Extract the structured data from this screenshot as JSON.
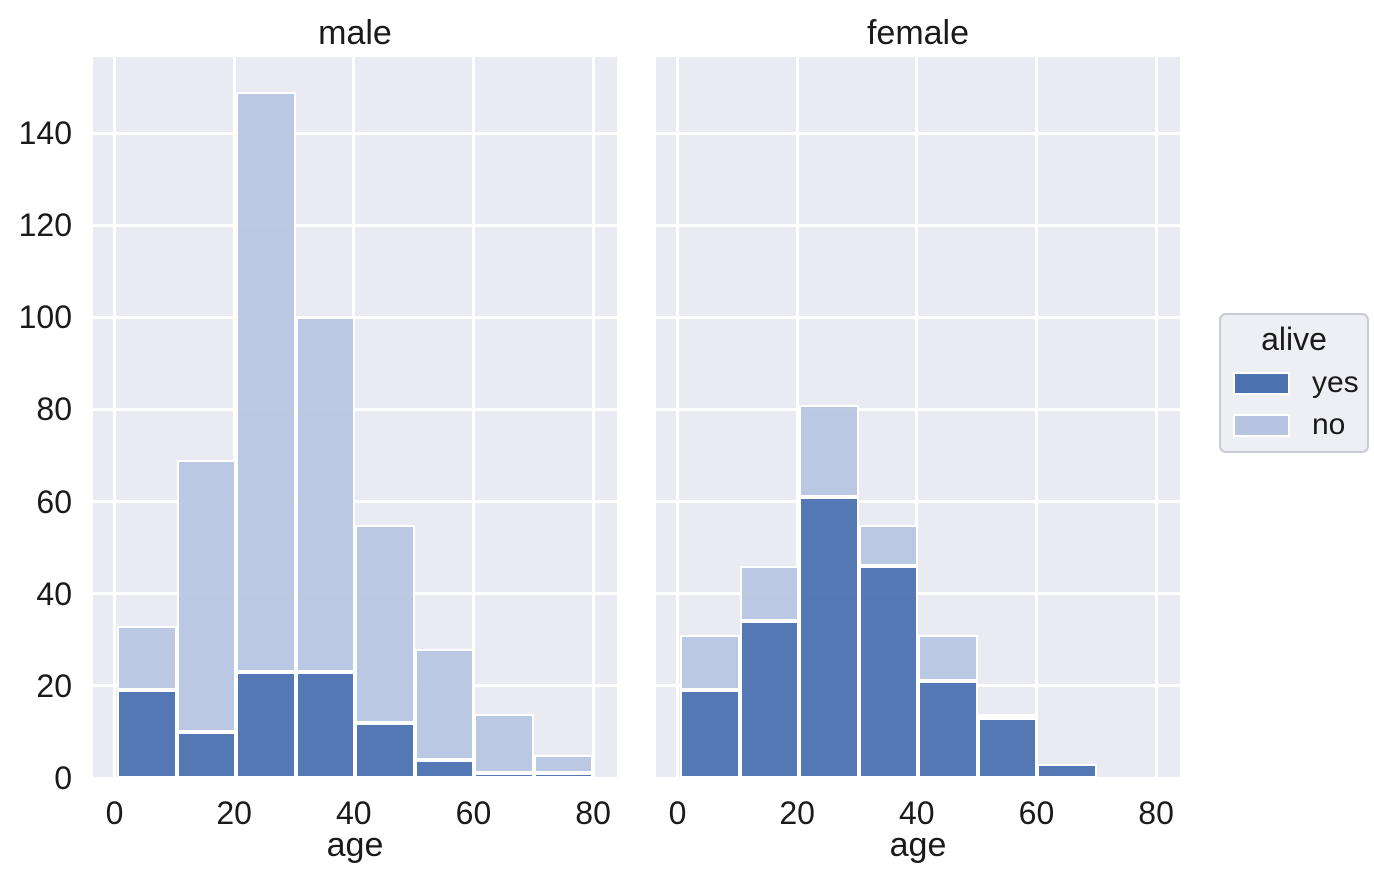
{
  "figure": {
    "background": "#ffffff",
    "panel_background": "#eaeaf2",
    "grid_color": "#ffffff",
    "text_color": "#1a1a1a"
  },
  "chart_data": {
    "type": "bar",
    "subtype": "stacked-histogram-facets",
    "xlabel": "age",
    "ylabel": "",
    "x_ticks": [
      0,
      20,
      40,
      60,
      80
    ],
    "y_ticks": [
      0,
      20,
      40,
      60,
      80,
      100,
      120,
      140
    ],
    "xlim": [
      -3.6,
      84
    ],
    "ylim": [
      0,
      156.5
    ],
    "grid": true,
    "bin_start": 0.42,
    "bin_width": 9.9475,
    "bin_count": 8,
    "facets": [
      {
        "title": "male",
        "series": [
          {
            "name": "yes",
            "values": [
              19,
              10,
              23,
              23,
              12,
              4,
              1,
              1
            ]
          },
          {
            "name": "no",
            "values": [
              14,
              59,
              126,
              77,
              43,
              24,
              13,
              4
            ]
          }
        ]
      },
      {
        "title": "female",
        "series": [
          {
            "name": "yes",
            "values": [
              19,
              34,
              61,
              46,
              21,
              13,
              3,
              0
            ]
          },
          {
            "name": "no",
            "values": [
              12,
              12,
              20,
              9,
              10,
              1,
              0,
              0
            ]
          }
        ]
      }
    ],
    "legend": {
      "title": "alive",
      "position": "right",
      "entries": [
        {
          "label": "yes",
          "color": "#4c72b0"
        },
        {
          "label": "no",
          "color": "#b6c4e1"
        }
      ]
    },
    "colors": {
      "yes_bar": "rgba(76,114,176,0.95)",
      "no_bar": "rgba(183,198,225,0.95)"
    }
  }
}
